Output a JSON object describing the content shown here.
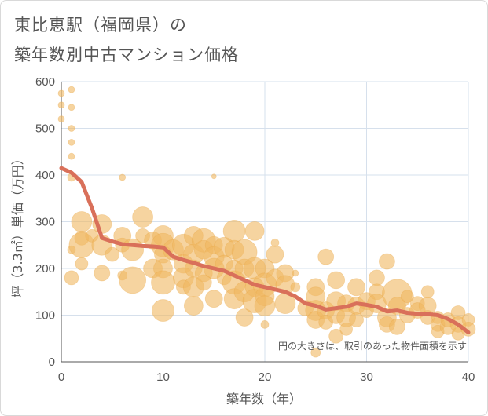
{
  "title_line1": "東比恵駅（福岡県）の",
  "title_line2": "築年数別中古マンション価格",
  "chart_data": {
    "type": "scatter",
    "xlabel": "築年数（年）",
    "ylabel": "坪（3.3㎡）単価（万円）",
    "xlim": [
      0,
      40
    ],
    "ylim": [
      0,
      600
    ],
    "xticks": [
      0,
      10,
      20,
      30,
      40
    ],
    "yticks": [
      0,
      100,
      200,
      300,
      400,
      500,
      600
    ],
    "grid": true,
    "note": "円の大きさは、取引のあった物件面積を示す",
    "colors": {
      "points": "#f0b860",
      "line": "#d9705a",
      "grid": "#d6e0ec",
      "axis": "#555555"
    },
    "scatter_points": [
      [
        0,
        575,
        4
      ],
      [
        0,
        550,
        4
      ],
      [
        0,
        520,
        4
      ],
      [
        1,
        583,
        4
      ],
      [
        1,
        545,
        4
      ],
      [
        1,
        500,
        4
      ],
      [
        1,
        470,
        4
      ],
      [
        1,
        440,
        4
      ],
      [
        1,
        395,
        5
      ],
      [
        1,
        240,
        5
      ],
      [
        1,
        180,
        9
      ],
      [
        2,
        300,
        13
      ],
      [
        2,
        265,
        9
      ],
      [
        2,
        250,
        16
      ],
      [
        2,
        210,
        8
      ],
      [
        3,
        270,
        8
      ],
      [
        4,
        295,
        12
      ],
      [
        4,
        250,
        13
      ],
      [
        4,
        190,
        10
      ],
      [
        5,
        230,
        9
      ],
      [
        6,
        270,
        11
      ],
      [
        6,
        250,
        9
      ],
      [
        6,
        395,
        4
      ],
      [
        6,
        185,
        6
      ],
      [
        7,
        240,
        14
      ],
      [
        7,
        175,
        17
      ],
      [
        8,
        310,
        13
      ],
      [
        8,
        270,
        9
      ],
      [
        9,
        260,
        11
      ],
      [
        9,
        200,
        12
      ],
      [
        10,
        270,
        13
      ],
      [
        10,
        250,
        15
      ],
      [
        10,
        230,
        11
      ],
      [
        10,
        200,
        12
      ],
      [
        10,
        170,
        15
      ],
      [
        10,
        110,
        14
      ],
      [
        11,
        240,
        13
      ],
      [
        12,
        250,
        14
      ],
      [
        12,
        210,
        12
      ],
      [
        12,
        180,
        13
      ],
      [
        12,
        160,
        9
      ],
      [
        13,
        270,
        12
      ],
      [
        13,
        230,
        13
      ],
      [
        13,
        200,
        11
      ],
      [
        13,
        160,
        13
      ],
      [
        13,
        120,
        12
      ],
      [
        14,
        260,
        15
      ],
      [
        14,
        240,
        12
      ],
      [
        14,
        190,
        11
      ],
      [
        14,
        170,
        10
      ],
      [
        15,
        250,
        11
      ],
      [
        15,
        225,
        13
      ],
      [
        15,
        200,
        13
      ],
      [
        15,
        135,
        11
      ],
      [
        15,
        397,
        3
      ],
      [
        16,
        245,
        13
      ],
      [
        16,
        210,
        11
      ],
      [
        16,
        180,
        9
      ],
      [
        17,
        280,
        14
      ],
      [
        17,
        240,
        12
      ],
      [
        17,
        200,
        11
      ],
      [
        17,
        170,
        15
      ],
      [
        17,
        135,
        13
      ],
      [
        18,
        235,
        16
      ],
      [
        18,
        200,
        12
      ],
      [
        18,
        150,
        13
      ],
      [
        18,
        95,
        11
      ],
      [
        19,
        280,
        12
      ],
      [
        19,
        200,
        14
      ],
      [
        19,
        160,
        12
      ],
      [
        19,
        130,
        15
      ],
      [
        20,
        200,
        12
      ],
      [
        20,
        165,
        15
      ],
      [
        20,
        140,
        12
      ],
      [
        20,
        120,
        13
      ],
      [
        20,
        80,
        5
      ],
      [
        21,
        255,
        5
      ],
      [
        21,
        230,
        11
      ],
      [
        21,
        180,
        11
      ],
      [
        22,
        190,
        11
      ],
      [
        22,
        165,
        12
      ],
      [
        22,
        125,
        13
      ],
      [
        23,
        190,
        4
      ],
      [
        23,
        160,
        6
      ],
      [
        24,
        115,
        10
      ],
      [
        25,
        160,
        11
      ],
      [
        25,
        140,
        12
      ],
      [
        25,
        110,
        13
      ],
      [
        25,
        90,
        11
      ],
      [
        25,
        20,
        6
      ],
      [
        26,
        225,
        10
      ],
      [
        26,
        110,
        11
      ],
      [
        26,
        85,
        9
      ],
      [
        27,
        175,
        11
      ],
      [
        27,
        130,
        12
      ],
      [
        27,
        100,
        11
      ],
      [
        27,
        55,
        9
      ],
      [
        28,
        125,
        11
      ],
      [
        28,
        95,
        12
      ],
      [
        28,
        70,
        8
      ],
      [
        29,
        160,
        11
      ],
      [
        29,
        120,
        11
      ],
      [
        29,
        90,
        9
      ],
      [
        30,
        130,
        11
      ],
      [
        30,
        110,
        9
      ],
      [
        31,
        180,
        10
      ],
      [
        31,
        150,
        10
      ],
      [
        31,
        125,
        12
      ],
      [
        32,
        215,
        10
      ],
      [
        32,
        95,
        12
      ],
      [
        32,
        80,
        10
      ],
      [
        33,
        145,
        19
      ],
      [
        33,
        120,
        11
      ],
      [
        33,
        75,
        10
      ],
      [
        34,
        100,
        10
      ],
      [
        34,
        140,
        8
      ],
      [
        35,
        125,
        9
      ],
      [
        35,
        110,
        10
      ],
      [
        36,
        150,
        8
      ],
      [
        36,
        120,
        11
      ],
      [
        36,
        95,
        9
      ],
      [
        37,
        95,
        8
      ],
      [
        37,
        80,
        9
      ],
      [
        37,
        65,
        8
      ],
      [
        38,
        75,
        10
      ],
      [
        38,
        90,
        9
      ],
      [
        39,
        105,
        9
      ],
      [
        39,
        80,
        10
      ],
      [
        39,
        60,
        8
      ],
      [
        40,
        90,
        8
      ],
      [
        40,
        70,
        9
      ]
    ],
    "trend_line": [
      [
        0,
        415
      ],
      [
        1,
        405
      ],
      [
        2,
        385
      ],
      [
        3,
        330
      ],
      [
        4,
        265
      ],
      [
        5,
        258
      ],
      [
        6,
        252
      ],
      [
        7,
        250
      ],
      [
        8,
        248
      ],
      [
        9,
        247
      ],
      [
        10,
        245
      ],
      [
        11,
        225
      ],
      [
        12,
        218
      ],
      [
        13,
        212
      ],
      [
        14,
        205
      ],
      [
        15,
        200
      ],
      [
        16,
        195
      ],
      [
        17,
        185
      ],
      [
        18,
        175
      ],
      [
        19,
        165
      ],
      [
        20,
        160
      ],
      [
        21,
        155
      ],
      [
        22,
        150
      ],
      [
        23,
        140
      ],
      [
        24,
        125
      ],
      [
        25,
        120
      ],
      [
        26,
        112
      ],
      [
        27,
        115
      ],
      [
        28,
        118
      ],
      [
        29,
        125
      ],
      [
        30,
        122
      ],
      [
        31,
        118
      ],
      [
        32,
        108
      ],
      [
        33,
        110
      ],
      [
        34,
        105
      ],
      [
        35,
        103
      ],
      [
        36,
        102
      ],
      [
        37,
        100
      ],
      [
        38,
        92
      ],
      [
        39,
        80
      ],
      [
        40,
        63
      ]
    ]
  }
}
